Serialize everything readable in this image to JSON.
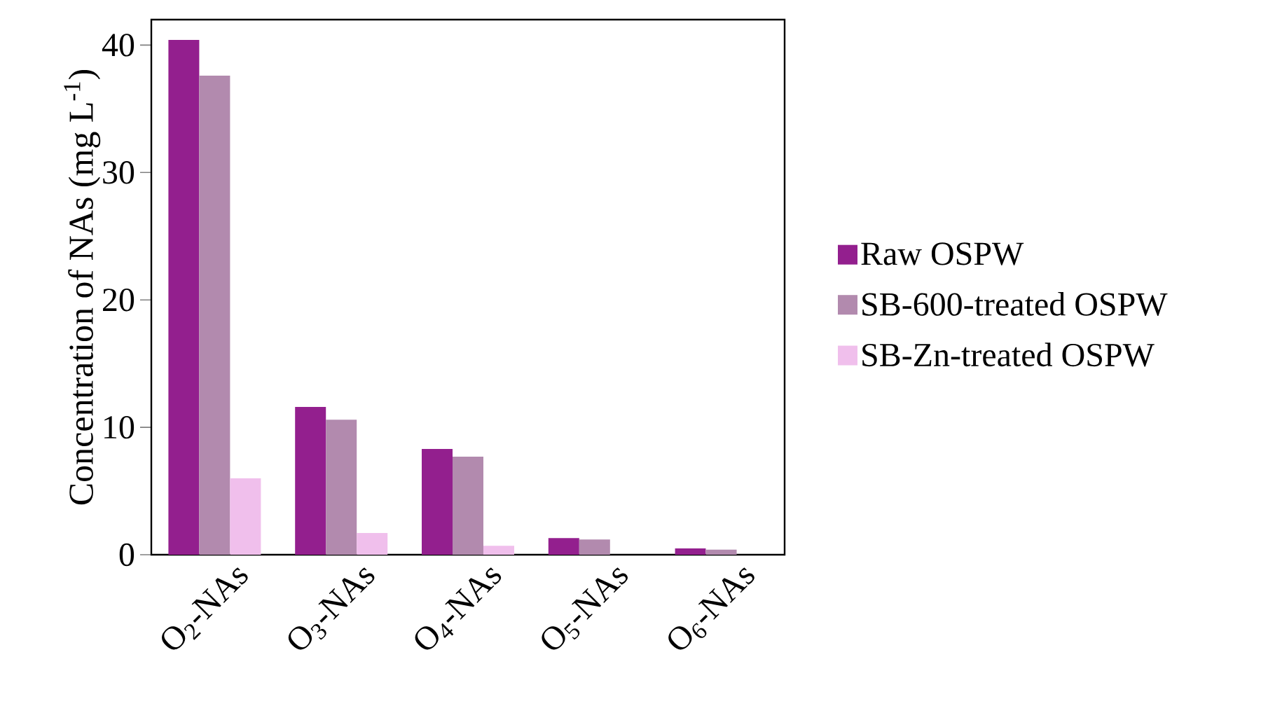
{
  "chart_data": {
    "type": "bar",
    "categories": [
      "O$_{2}$-NAs",
      "O$_{3}$-NAs",
      "O$_{4}$-NAs",
      "O$_{5}$-NAs",
      "O$_{6}$-NAs"
    ],
    "series": [
      {
        "name": "Raw OSPW",
        "color": "#931f8e",
        "values": [
          40.4,
          11.6,
          8.3,
          1.3,
          0.5
        ]
      },
      {
        "name": "SB-600-treated OSPW",
        "color": "#b28aae",
        "values": [
          37.6,
          10.6,
          7.7,
          1.2,
          0.4
        ]
      },
      {
        "name": "SB-Zn-treated OSPW",
        "color": "#f0bfec",
        "values": [
          6.0,
          1.7,
          0.7,
          0,
          0
        ]
      }
    ],
    "ylabel": "Concentration of NAs (mg L$^{-1}$)",
    "ylim": [
      0,
      42
    ],
    "yticks": [
      0,
      10,
      20,
      30,
      40
    ],
    "legend": "right"
  }
}
